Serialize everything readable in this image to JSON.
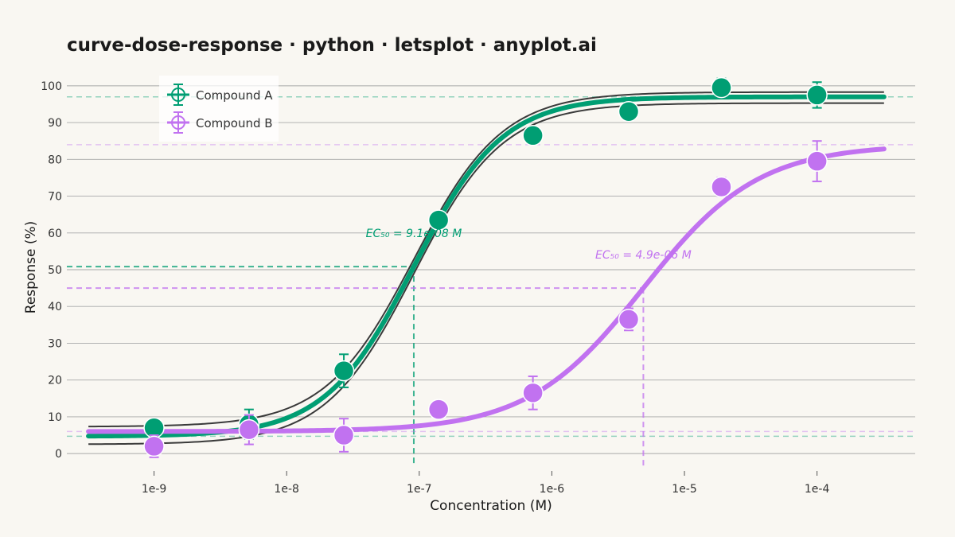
{
  "chart_data": {
    "type": "scatter",
    "title": "curve-dose-response · python · letsplot · anyplot.ai",
    "xlabel": "Concentration (M)",
    "ylabel": "Response (%)",
    "x_scale": "log10",
    "xlim": [
      2.2e-10,
      0.00055
    ],
    "ylim": [
      -3,
      103
    ],
    "x_ticks": [
      {
        "value": 1e-09,
        "label": "1e-9"
      },
      {
        "value": 1e-08,
        "label": "1e-8"
      },
      {
        "value": 1e-07,
        "label": "1e-7"
      },
      {
        "value": 1e-06,
        "label": "1e-6"
      },
      {
        "value": 1e-05,
        "label": "1e-5"
      },
      {
        "value": 0.0001,
        "label": "1e-4"
      }
    ],
    "y_ticks": [
      0,
      10,
      20,
      30,
      40,
      50,
      60,
      70,
      80,
      90,
      100
    ],
    "grid": "horizontal",
    "legend_position": "top-left",
    "series": [
      {
        "name": "Compound A",
        "color": "#009E73",
        "points": [
          {
            "x": 1e-09,
            "y": 7,
            "err": 1.5
          },
          {
            "x": 5.2e-09,
            "y": 8,
            "err": 4.0
          },
          {
            "x": 2.7e-08,
            "y": 22.5,
            "err": 4.5
          },
          {
            "x": 1.4e-07,
            "y": 63.5,
            "err": 2.0
          },
          {
            "x": 7.2e-07,
            "y": 86.5,
            "err": 1.5
          },
          {
            "x": 3.8e-06,
            "y": 93,
            "err": 1.5
          },
          {
            "x": 1.9e-05,
            "y": 99.5,
            "err": 2.5
          },
          {
            "x": 0.0001,
            "y": 97.5,
            "err": 3.5
          }
        ],
        "fit": {
          "bottom": 4.7,
          "top": 97,
          "ec50": 9.1e-08,
          "hill": 1.3
        },
        "ci_band": {
          "bottom_upper": 7.3,
          "top_upper": 98.3,
          "bottom_lower": 2.5,
          "top_lower": 95.3
        },
        "ec50_label": "EC₅₀ = 9.1e-08 M",
        "ec50_value": 9.1e-08,
        "ec50_response": 50.85
      },
      {
        "name": "Compound B",
        "color": "#C172F0",
        "points": [
          {
            "x": 1e-09,
            "y": 2,
            "err": 3.0
          },
          {
            "x": 5.2e-09,
            "y": 6.5,
            "err": 4.0
          },
          {
            "x": 2.7e-08,
            "y": 5,
            "err": 4.5
          },
          {
            "x": 1.4e-07,
            "y": 12,
            "err": 2.0
          },
          {
            "x": 7.2e-07,
            "y": 16.5,
            "err": 4.5
          },
          {
            "x": 3.8e-06,
            "y": 36.5,
            "err": 3.0
          },
          {
            "x": 1.9e-05,
            "y": 72.5,
            "err": 2.5
          },
          {
            "x": 0.0001,
            "y": 79.5,
            "err": 5.5
          }
        ],
        "fit": {
          "bottom": 6,
          "top": 84,
          "ec50": 4.9e-06,
          "hill": 1.0
        },
        "ec50_label": "EC₅₀ = 4.9e-06 M",
        "ec50_value": 4.9e-06,
        "ec50_response": 45
      }
    ]
  }
}
